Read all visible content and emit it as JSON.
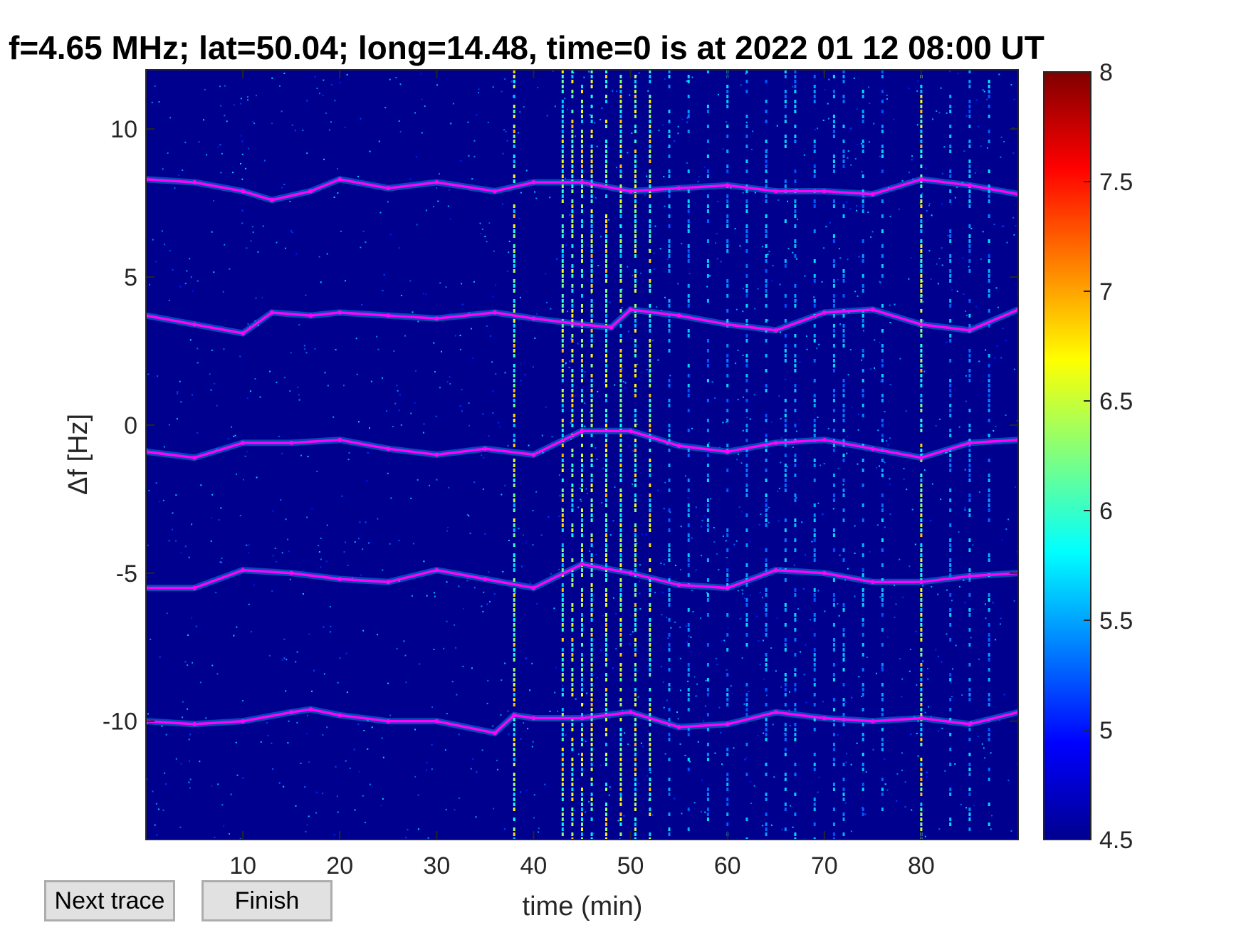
{
  "figure": {
    "title": "f=4.65 MHz;  lat=50.04; long=14.48, time=0 is at 2022 01 12 08:00 UT"
  },
  "buttons": {
    "next_trace": "Next trace",
    "finish": "Finish"
  },
  "chart_data": {
    "type": "heatmap",
    "title": "f=4.65 MHz;  lat=50.04; long=14.48, time=0 is at 2022 01 12 08:00 UT",
    "xlabel": "time (min)",
    "ylabel": "Δf [Hz]",
    "xlim": [
      0,
      90
    ],
    "ylim": [
      -14,
      12
    ],
    "x_ticks": [
      10,
      20,
      30,
      40,
      50,
      60,
      70,
      80
    ],
    "y_ticks": [
      10,
      5,
      0,
      -5,
      -10
    ],
    "colorbar": {
      "range": [
        4.5,
        8
      ],
      "ticks": [
        "8",
        "7.5",
        "7",
        "6.5",
        "6",
        "5.5",
        "5",
        "4.5"
      ],
      "colormap": "jet"
    },
    "colors": {
      "background": "#00008f",
      "trace": "#ff00ff",
      "detected": "#000000"
    },
    "series": [
      {
        "x": [
          0,
          5,
          10,
          13,
          17,
          20,
          25,
          30,
          36,
          40,
          45,
          50,
          55,
          60,
          65,
          70,
          75,
          80,
          85,
          90
        ],
        "y": [
          8.3,
          8.2,
          7.9,
          7.6,
          7.9,
          8.3,
          8.0,
          8.2,
          7.9,
          8.2,
          8.2,
          7.9,
          8.0,
          8.1,
          7.9,
          7.9,
          7.8,
          8.3,
          8.1,
          7.8
        ]
      },
      {
        "x": [
          0,
          5,
          10,
          13,
          17,
          20,
          25,
          30,
          36,
          40,
          45,
          48,
          50,
          55,
          60,
          65,
          70,
          75,
          80,
          85,
          90
        ],
        "y": [
          3.7,
          3.4,
          3.1,
          3.8,
          3.7,
          3.8,
          3.7,
          3.6,
          3.8,
          3.6,
          3.4,
          3.3,
          3.9,
          3.7,
          3.4,
          3.2,
          3.8,
          3.9,
          3.4,
          3.2,
          3.9
        ]
      },
      {
        "x": [
          0,
          5,
          10,
          15,
          20,
          25,
          30,
          35,
          40,
          45,
          50,
          55,
          60,
          65,
          70,
          75,
          80,
          85,
          90
        ],
        "y": [
          -0.9,
          -1.1,
          -0.6,
          -0.6,
          -0.5,
          -0.8,
          -1.0,
          -0.8,
          -1.0,
          -0.2,
          -0.2,
          -0.7,
          -0.9,
          -0.6,
          -0.5,
          -0.8,
          -1.1,
          -0.6,
          -0.5
        ]
      },
      {
        "x": [
          0,
          5,
          10,
          15,
          20,
          25,
          30,
          35,
          40,
          45,
          50,
          55,
          60,
          65,
          70,
          75,
          80,
          85,
          90
        ],
        "y": [
          -5.5,
          -5.5,
          -4.9,
          -5.0,
          -5.2,
          -5.3,
          -4.9,
          -5.2,
          -5.5,
          -4.7,
          -5.0,
          -5.4,
          -5.5,
          -4.9,
          -5.0,
          -5.3,
          -5.3,
          -5.1,
          -5.0
        ]
      },
      {
        "x": [
          0,
          5,
          10,
          15,
          17,
          20,
          25,
          30,
          36,
          38,
          40,
          45,
          50,
          55,
          60,
          65,
          70,
          75,
          80,
          85,
          90
        ],
        "y": [
          -10.0,
          -10.1,
          -10.0,
          -9.7,
          -9.6,
          -9.8,
          -10.0,
          -10.0,
          -10.4,
          -9.8,
          -9.9,
          -9.9,
          -9.7,
          -10.2,
          -10.1,
          -9.7,
          -9.9,
          -10.0,
          -9.9,
          -10.1,
          -9.7
        ]
      }
    ]
  }
}
